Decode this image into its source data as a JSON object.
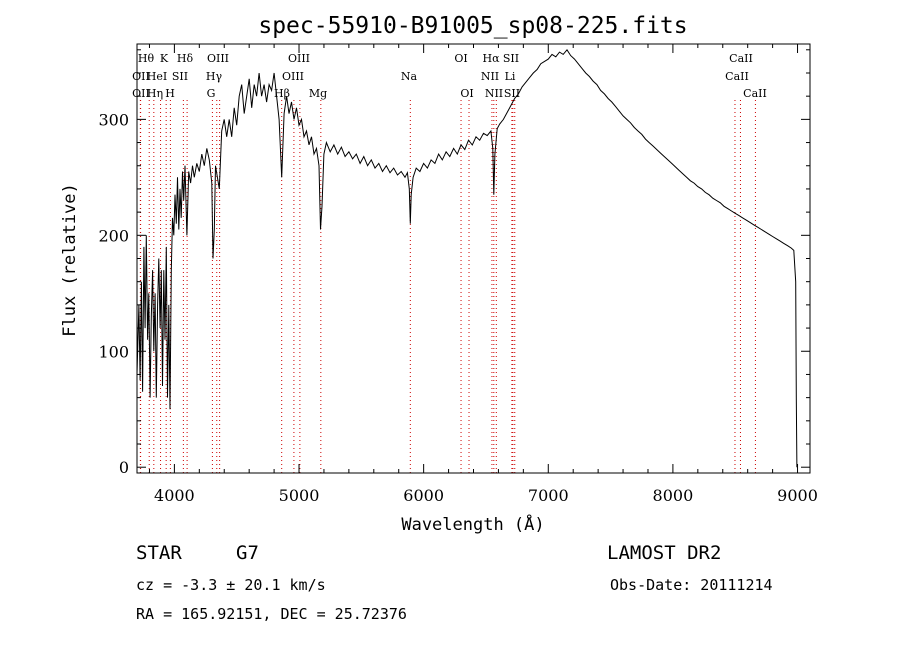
{
  "chart_data": {
    "type": "line",
    "title": "spec-55910-B91005_sp08-225.fits",
    "xlabel": "Wavelength (Å)",
    "ylabel": "Flux (relative)",
    "xlim": [
      3700,
      9100
    ],
    "ylim": [
      -5,
      365
    ],
    "xticks": [
      4000,
      5000,
      6000,
      7000,
      8000,
      9000
    ],
    "yticks": [
      0,
      100,
      200,
      300
    ],
    "grid": false,
    "line_color": "#000000",
    "marker_color": "#cc0000",
    "series": [
      {
        "points": [
          [
            3700,
            80
          ],
          [
            3715,
            140
          ],
          [
            3725,
            75
          ],
          [
            3735,
            160
          ],
          [
            3745,
            65
          ],
          [
            3755,
            190
          ],
          [
            3765,
            120
          ],
          [
            3775,
            200
          ],
          [
            3785,
            110
          ],
          [
            3795,
            150
          ],
          [
            3805,
            60
          ],
          [
            3815,
            130
          ],
          [
            3825,
            170
          ],
          [
            3835,
            100
          ],
          [
            3845,
            150
          ],
          [
            3855,
            60
          ],
          [
            3865,
            140
          ],
          [
            3875,
            180
          ],
          [
            3885,
            120
          ],
          [
            3895,
            170
          ],
          [
            3905,
            70
          ],
          [
            3915,
            170
          ],
          [
            3925,
            110
          ],
          [
            3935,
            190
          ],
          [
            3945,
            60
          ],
          [
            3955,
            140
          ],
          [
            3965,
            50
          ],
          [
            3975,
            170
          ],
          [
            3985,
            215
          ],
          [
            3995,
            200
          ],
          [
            4005,
            235
          ],
          [
            4015,
            210
          ],
          [
            4025,
            250
          ],
          [
            4035,
            205
          ],
          [
            4045,
            240
          ],
          [
            4055,
            215
          ],
          [
            4065,
            255
          ],
          [
            4075,
            230
          ],
          [
            4085,
            260
          ],
          [
            4100,
            200
          ],
          [
            4115,
            255
          ],
          [
            4130,
            245
          ],
          [
            4145,
            260
          ],
          [
            4160,
            250
          ],
          [
            4180,
            262
          ],
          [
            4200,
            255
          ],
          [
            4220,
            270
          ],
          [
            4240,
            260
          ],
          [
            4260,
            275
          ],
          [
            4280,
            265
          ],
          [
            4300,
            245
          ],
          [
            4310,
            180
          ],
          [
            4320,
            205
          ],
          [
            4330,
            260
          ],
          [
            4345,
            250
          ],
          [
            4360,
            240
          ],
          [
            4380,
            290
          ],
          [
            4400,
            300
          ],
          [
            4420,
            285
          ],
          [
            4440,
            300
          ],
          [
            4460,
            285
          ],
          [
            4480,
            310
          ],
          [
            4500,
            295
          ],
          [
            4520,
            320
          ],
          [
            4540,
            330
          ],
          [
            4560,
            305
          ],
          [
            4580,
            320
          ],
          [
            4600,
            335
          ],
          [
            4620,
            310
          ],
          [
            4640,
            330
          ],
          [
            4660,
            320
          ],
          [
            4680,
            340
          ],
          [
            4700,
            320
          ],
          [
            4720,
            330
          ],
          [
            4740,
            315
          ],
          [
            4760,
            330
          ],
          [
            4780,
            325
          ],
          [
            4800,
            340
          ],
          [
            4820,
            320
          ],
          [
            4840,
            300
          ],
          [
            4861,
            250
          ],
          [
            4880,
            305
          ],
          [
            4900,
            320
          ],
          [
            4920,
            305
          ],
          [
            4940,
            315
          ],
          [
            4960,
            300
          ],
          [
            4980,
            310
          ],
          [
            5000,
            295
          ],
          [
            5020,
            300
          ],
          [
            5040,
            285
          ],
          [
            5060,
            290
          ],
          [
            5080,
            278
          ],
          [
            5100,
            285
          ],
          [
            5120,
            270
          ],
          [
            5140,
            275
          ],
          [
            5160,
            260
          ],
          [
            5172,
            205
          ],
          [
            5184,
            225
          ],
          [
            5200,
            270
          ],
          [
            5220,
            280
          ],
          [
            5250,
            272
          ],
          [
            5280,
            278
          ],
          [
            5310,
            270
          ],
          [
            5340,
            276
          ],
          [
            5370,
            268
          ],
          [
            5400,
            272
          ],
          [
            5430,
            266
          ],
          [
            5460,
            270
          ],
          [
            5490,
            262
          ],
          [
            5520,
            268
          ],
          [
            5550,
            260
          ],
          [
            5580,
            265
          ],
          [
            5610,
            258
          ],
          [
            5640,
            262
          ],
          [
            5670,
            255
          ],
          [
            5700,
            260
          ],
          [
            5730,
            254
          ],
          [
            5760,
            258
          ],
          [
            5790,
            252
          ],
          [
            5820,
            255
          ],
          [
            5850,
            250
          ],
          [
            5870,
            254
          ],
          [
            5885,
            240
          ],
          [
            5893,
            210
          ],
          [
            5900,
            235
          ],
          [
            5915,
            250
          ],
          [
            5940,
            258
          ],
          [
            5970,
            255
          ],
          [
            6000,
            262
          ],
          [
            6030,
            258
          ],
          [
            6060,
            265
          ],
          [
            6090,
            262
          ],
          [
            6120,
            270
          ],
          [
            6150,
            265
          ],
          [
            6180,
            272
          ],
          [
            6210,
            268
          ],
          [
            6240,
            275
          ],
          [
            6270,
            270
          ],
          [
            6300,
            278
          ],
          [
            6330,
            274
          ],
          [
            6360,
            282
          ],
          [
            6390,
            278
          ],
          [
            6420,
            285
          ],
          [
            6450,
            282
          ],
          [
            6480,
            288
          ],
          [
            6510,
            286
          ],
          [
            6540,
            290
          ],
          [
            6555,
            275
          ],
          [
            6563,
            235
          ],
          [
            6572,
            270
          ],
          [
            6590,
            292
          ],
          [
            6610,
            296
          ],
          [
            6640,
            300
          ],
          [
            6670,
            306
          ],
          [
            6700,
            312
          ],
          [
            6730,
            318
          ],
          [
            6760,
            322
          ],
          [
            6790,
            328
          ],
          [
            6820,
            332
          ],
          [
            6850,
            336
          ],
          [
            6880,
            340
          ],
          [
            6910,
            343
          ],
          [
            6940,
            348
          ],
          [
            6970,
            350
          ],
          [
            7000,
            352
          ],
          [
            7030,
            356
          ],
          [
            7060,
            354
          ],
          [
            7090,
            358
          ],
          [
            7120,
            356
          ],
          [
            7150,
            360
          ],
          [
            7180,
            355
          ],
          [
            7210,
            352
          ],
          [
            7240,
            348
          ],
          [
            7270,
            344
          ],
          [
            7300,
            340
          ],
          [
            7330,
            337
          ],
          [
            7360,
            333
          ],
          [
            7390,
            330
          ],
          [
            7420,
            325
          ],
          [
            7450,
            322
          ],
          [
            7480,
            318
          ],
          [
            7510,
            315
          ],
          [
            7540,
            311
          ],
          [
            7570,
            307
          ],
          [
            7600,
            303
          ],
          [
            7630,
            300
          ],
          [
            7660,
            297
          ],
          [
            7690,
            293
          ],
          [
            7720,
            290
          ],
          [
            7750,
            287
          ],
          [
            7780,
            283
          ],
          [
            7810,
            280
          ],
          [
            7840,
            277
          ],
          [
            7870,
            274
          ],
          [
            7900,
            271
          ],
          [
            7930,
            268
          ],
          [
            7960,
            265
          ],
          [
            7990,
            262
          ],
          [
            8020,
            259
          ],
          [
            8050,
            256
          ],
          [
            8080,
            253
          ],
          [
            8110,
            250
          ],
          [
            8140,
            247
          ],
          [
            8170,
            245
          ],
          [
            8200,
            242
          ],
          [
            8230,
            240
          ],
          [
            8260,
            237
          ],
          [
            8290,
            235
          ],
          [
            8320,
            232
          ],
          [
            8350,
            230
          ],
          [
            8380,
            228
          ],
          [
            8410,
            225
          ],
          [
            8440,
            223
          ],
          [
            8470,
            221
          ],
          [
            8500,
            219
          ],
          [
            8530,
            217
          ],
          [
            8560,
            215
          ],
          [
            8590,
            213
          ],
          [
            8620,
            211
          ],
          [
            8650,
            209
          ],
          [
            8680,
            207
          ],
          [
            8710,
            205
          ],
          [
            8740,
            203
          ],
          [
            8770,
            201
          ],
          [
            8800,
            199
          ],
          [
            8830,
            197
          ],
          [
            8860,
            195
          ],
          [
            8890,
            193
          ],
          [
            8920,
            191
          ],
          [
            8950,
            189
          ],
          [
            8970,
            187
          ],
          [
            8985,
            160
          ],
          [
            8990,
            60
          ],
          [
            8995,
            0
          ]
        ]
      }
    ],
    "lines": [
      {
        "label": "Hθ",
        "wl": 3798,
        "row": 0,
        "x_label": 146
      },
      {
        "label": "K",
        "wl": 3934,
        "row": 0,
        "x_label": 164
      },
      {
        "label": "Hδ",
        "wl": 4102,
        "row": 0,
        "x_label": 185
      },
      {
        "label": "OII",
        "wl": 3727,
        "row": 1,
        "x_label": 141
      },
      {
        "label": "HeI",
        "wl": 3889,
        "row": 1,
        "x_label": 157
      },
      {
        "label": "SII",
        "wl": 4072,
        "row": 1,
        "x_label": 180
      },
      {
        "label": "OII",
        "wl": 3729,
        "row": 2,
        "x_label": 141
      },
      {
        "label": "Hη",
        "wl": 3835,
        "row": 2,
        "x_label": 155
      },
      {
        "label": "H",
        "wl": 3968,
        "row": 2,
        "x_label": 170
      },
      {
        "label": "OIII",
        "wl": 4363,
        "row": 0,
        "x_label": 218
      },
      {
        "label": "Hγ",
        "wl": 4340,
        "row": 1,
        "x_label": 214
      },
      {
        "label": "G",
        "wl": 4305,
        "row": 2,
        "x_label": 211
      },
      {
        "label": "OIII",
        "wl": 5007,
        "row": 0,
        "x_label": 299
      },
      {
        "label": "OIII",
        "wl": 4959,
        "row": 1,
        "x_label": 293
      },
      {
        "label": "Hβ",
        "wl": 4861,
        "row": 2,
        "x_label": 282
      },
      {
        "label": "Mg",
        "wl": 5175,
        "row": 2,
        "x_label": 318
      },
      {
        "label": "Na",
        "wl": 5893,
        "row": 1,
        "x_label": 409
      },
      {
        "label": "OI",
        "wl": 6300,
        "row": 0,
        "x_label": 461
      },
      {
        "label": "OI",
        "wl": 6364,
        "row": 2,
        "x_label": 467
      },
      {
        "label": "Hα",
        "wl": 6563,
        "row": 0,
        "x_label": 491
      },
      {
        "label": "SII",
        "wl": 6716,
        "row": 0,
        "x_label": 511
      },
      {
        "label": "NII",
        "wl": 6548,
        "row": 1,
        "x_label": 490
      },
      {
        "label": "Li",
        "wl": 6708,
        "row": 1,
        "x_label": 510
      },
      {
        "label": "NII",
        "wl": 6583,
        "row": 2,
        "x_label": 494
      },
      {
        "label": "SII",
        "wl": 6731,
        "row": 2,
        "x_label": 512
      },
      {
        "label": "CaII",
        "wl": 8542,
        "row": 0,
        "x_label": 741
      },
      {
        "label": "CaII",
        "wl": 8498,
        "row": 1,
        "x_label": 737
      },
      {
        "label": "CaII",
        "wl": 8662,
        "row": 2,
        "x_label": 755
      }
    ]
  },
  "info": {
    "class_label": "STAR",
    "subclass_label": "G7",
    "survey": "LAMOST DR2",
    "cz": "cz = -3.3 ± 20.1 km/s",
    "obs_date": "Obs-Date: 20111214",
    "coords": "RA = 165.92151, DEC =  25.72376"
  }
}
